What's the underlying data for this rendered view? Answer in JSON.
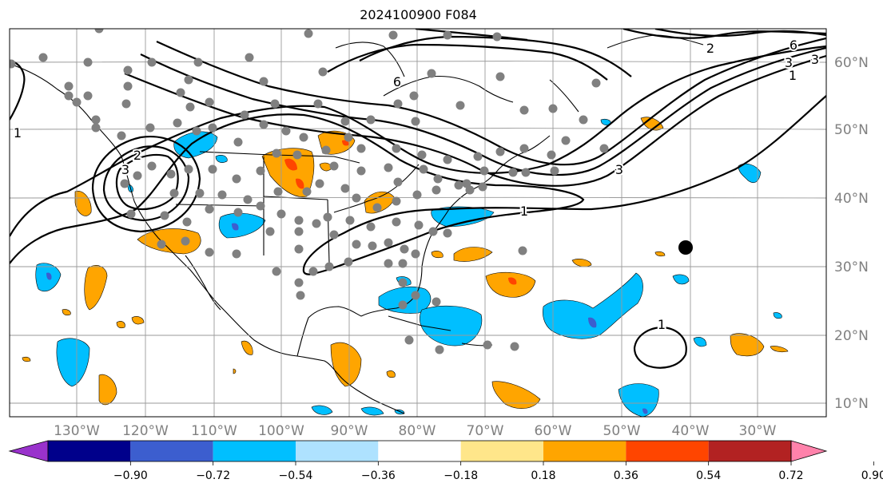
{
  "title": "2024100900 F084",
  "lon_labels": [
    "130°W",
    "120°W",
    "110°W",
    "100°W",
    "90°W",
    "80°W",
    "70°W",
    "60°W",
    "50°W",
    "40°W",
    "30°W"
  ],
  "lat_labels": [
    "60°N",
    "50°N",
    "40°N",
    "30°N",
    "20°N",
    "10°N"
  ],
  "contour_labels": [
    "6",
    "2",
    "3",
    "1",
    "2",
    "3",
    "1",
    "6",
    "3",
    "3",
    "1",
    "1"
  ],
  "colorbar": {
    "ticks": [
      "−0.90",
      "−0.72",
      "−0.54",
      "−0.36",
      "−0.18",
      "0.18",
      "0.36",
      "0.54",
      "0.72",
      "0.90"
    ],
    "colors": [
      "#9932cc",
      "#00008b",
      "#3c5ecf",
      "#00bfff",
      "#aee2ff",
      "#ffffff",
      "#ffe68a",
      "#ffa500",
      "#ff4500",
      "#b22222",
      "#ff82ab"
    ]
  },
  "colors": {
    "positive": "#ffa500",
    "positive_strong": "#ff4500",
    "negative": "#00bfff",
    "negative_strong": "#3c5ecf",
    "station": "#808080"
  }
}
